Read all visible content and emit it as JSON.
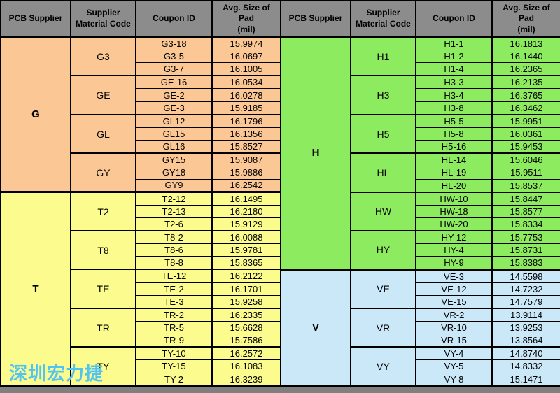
{
  "watermark": "深圳宏力捷",
  "colors": {
    "header_bg": "#8c8c8c",
    "page_bg": "#7f7f7f",
    "border": "#000000",
    "watermark_blue": "#53c3f1",
    "section_g": "#fbc795",
    "section_t": "#fcfc8e",
    "section_h": "#8deb5f",
    "section_v": "#cbe8f8"
  },
  "header": {
    "supplier": "PCB Supplier",
    "material_line1": "Supplier",
    "material_line2": "Material Code",
    "coupon": "Coupon ID",
    "avg_line1": "Avg. Size of Pad",
    "avg_line2": "(mil)"
  },
  "tables": [
    {
      "sections": [
        {
          "supplier": "G",
          "color": "#fbc795",
          "groups": [
            {
              "material": "G3",
              "rows": [
                {
                  "coupon": "G3-18",
                  "avg": "15.9974"
                },
                {
                  "coupon": "G3-5",
                  "avg": "16.0697"
                },
                {
                  "coupon": "G3-7",
                  "avg": "16.1005"
                }
              ]
            },
            {
              "material": "GE",
              "rows": [
                {
                  "coupon": "GE-16",
                  "avg": "16.0534"
                },
                {
                  "coupon": "GE-2",
                  "avg": "16.0278"
                },
                {
                  "coupon": "GE-3",
                  "avg": "15.9185"
                }
              ]
            },
            {
              "material": "GL",
              "rows": [
                {
                  "coupon": "GL12",
                  "avg": "16.1796"
                },
                {
                  "coupon": "GL15",
                  "avg": "16.1356"
                },
                {
                  "coupon": "GL16",
                  "avg": "15.8527"
                }
              ]
            },
            {
              "material": "GY",
              "rows": [
                {
                  "coupon": "GY15",
                  "avg": "15.9087"
                },
                {
                  "coupon": "GY18",
                  "avg": "15.9886"
                },
                {
                  "coupon": "GY9",
                  "avg": "16.2542"
                }
              ]
            }
          ]
        },
        {
          "supplier": "T",
          "color": "#fcfc8e",
          "groups": [
            {
              "material": "T2",
              "rows": [
                {
                  "coupon": "T2-12",
                  "avg": "16.1495"
                },
                {
                  "coupon": "T2-13",
                  "avg": "16.2180"
                },
                {
                  "coupon": "T2-6",
                  "avg": "15.9129"
                }
              ]
            },
            {
              "material": "T8",
              "rows": [
                {
                  "coupon": "T8-2",
                  "avg": "16.0088"
                },
                {
                  "coupon": "T8-6",
                  "avg": "15.9781"
                },
                {
                  "coupon": "T8-8",
                  "avg": "15.8365"
                }
              ]
            },
            {
              "material": "TE",
              "rows": [
                {
                  "coupon": "TE-12",
                  "avg": "16.2122"
                },
                {
                  "coupon": "TE-2",
                  "avg": "16.1701"
                },
                {
                  "coupon": "TE-3",
                  "avg": "15.9258"
                }
              ]
            },
            {
              "material": "TR",
              "rows": [
                {
                  "coupon": "TR-2",
                  "avg": "16.2335"
                },
                {
                  "coupon": "TR-5",
                  "avg": "15.6628"
                },
                {
                  "coupon": "TR-9",
                  "avg": "15.7586"
                }
              ]
            },
            {
              "material": "TY",
              "rows": [
                {
                  "coupon": "TY-10",
                  "avg": "16.2572"
                },
                {
                  "coupon": "TY-15",
                  "avg": "16.1083"
                },
                {
                  "coupon": "TY-2",
                  "avg": "16.3239"
                }
              ]
            }
          ]
        }
      ]
    },
    {
      "sections": [
        {
          "supplier": "H",
          "color": "#8deb5f",
          "groups": [
            {
              "material": "H1",
              "rows": [
                {
                  "coupon": "H1-1",
                  "avg": "16.1813"
                },
                {
                  "coupon": "H1-2",
                  "avg": "16.1440"
                },
                {
                  "coupon": "H1-4",
                  "avg": "16.2365"
                }
              ]
            },
            {
              "material": "H3",
              "rows": [
                {
                  "coupon": "H3-3",
                  "avg": "16.2135"
                },
                {
                  "coupon": "H3-4",
                  "avg": "16.3765"
                },
                {
                  "coupon": "H3-8",
                  "avg": "16.3462"
                }
              ]
            },
            {
              "material": "H5",
              "rows": [
                {
                  "coupon": "H5-5",
                  "avg": "15.9951"
                },
                {
                  "coupon": "H5-8",
                  "avg": "16.0361"
                },
                {
                  "coupon": "H5-16",
                  "avg": "15.9453"
                }
              ]
            },
            {
              "material": "HL",
              "rows": [
                {
                  "coupon": "HL-14",
                  "avg": "15.6046"
                },
                {
                  "coupon": "HL-19",
                  "avg": "15.9511"
                },
                {
                  "coupon": "HL-20",
                  "avg": "15.8537"
                }
              ]
            },
            {
              "material": "HW",
              "rows": [
                {
                  "coupon": "HW-10",
                  "avg": "15.8447"
                },
                {
                  "coupon": "HW-18",
                  "avg": "15.8577"
                },
                {
                  "coupon": "HW-20",
                  "avg": "15.8334"
                }
              ]
            },
            {
              "material": "HY",
              "rows": [
                {
                  "coupon": "HY-12",
                  "avg": "15.7753"
                },
                {
                  "coupon": "HY-4",
                  "avg": "15.8731"
                },
                {
                  "coupon": "HY-9",
                  "avg": "15.8383"
                }
              ]
            }
          ]
        },
        {
          "supplier": "V",
          "color": "#cbe8f8",
          "groups": [
            {
              "material": "VE",
              "rows": [
                {
                  "coupon": "VE-3",
                  "avg": "14.5598"
                },
                {
                  "coupon": "VE-12",
                  "avg": "14.7232"
                },
                {
                  "coupon": "VE-15",
                  "avg": "14.7579"
                }
              ]
            },
            {
              "material": "VR",
              "rows": [
                {
                  "coupon": "VR-2",
                  "avg": "13.9114"
                },
                {
                  "coupon": "VR-10",
                  "avg": "13.9253"
                },
                {
                  "coupon": "VR-15",
                  "avg": "13.8564"
                }
              ]
            },
            {
              "material": "VY",
              "rows": [
                {
                  "coupon": "VY-4",
                  "avg": "14.8740"
                },
                {
                  "coupon": "VY-5",
                  "avg": "14.8332"
                },
                {
                  "coupon": "VY-8",
                  "avg": "15.1471"
                }
              ]
            }
          ]
        }
      ]
    }
  ]
}
